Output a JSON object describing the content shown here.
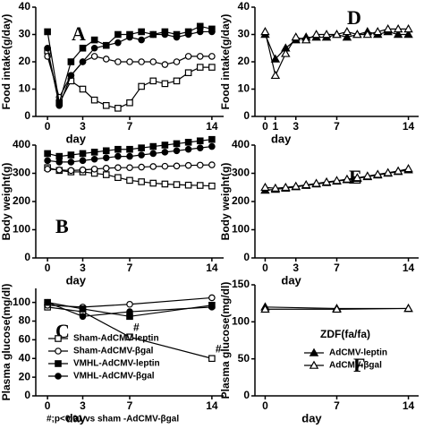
{
  "chart_data": [
    {
      "type": "line",
      "panel_label": "A",
      "y_label": "Food intake(g/day)",
      "x_label": "day",
      "x": [
        0,
        1,
        2,
        3,
        4,
        5,
        6,
        7,
        8,
        9,
        10,
        11,
        12,
        13,
        14
      ],
      "xlim": [
        -1,
        15
      ],
      "xticks": [
        0,
        3,
        7,
        14
      ],
      "ylim": [
        0,
        40
      ],
      "yticks": [
        0,
        10,
        20,
        30,
        40
      ],
      "series": [
        {
          "marker": "square-open",
          "values": [
            24,
            5,
            13,
            10,
            6,
            4,
            3,
            5,
            11,
            13,
            12,
            13,
            16,
            18,
            18
          ]
        },
        {
          "marker": "circle-open",
          "values": [
            22,
            7,
            15,
            20,
            22,
            21,
            20,
            20,
            20,
            20,
            19,
            20,
            22,
            22,
            22
          ]
        },
        {
          "marker": "square",
          "values": [
            31,
            5,
            20,
            25,
            28,
            26,
            30,
            30,
            31,
            30,
            31,
            30,
            31,
            33,
            32
          ]
        },
        {
          "marker": "circle",
          "values": [
            25,
            4,
            15,
            20,
            25,
            26,
            27,
            29,
            28,
            30,
            30,
            29,
            30,
            31,
            31
          ]
        }
      ]
    },
    {
      "type": "line",
      "panel_label": "B",
      "y_label": "Body weight(g)",
      "x_label": "day",
      "x": [
        0,
        1,
        2,
        3,
        4,
        5,
        6,
        7,
        8,
        9,
        10,
        11,
        12,
        13,
        14
      ],
      "xlim": [
        -1,
        15
      ],
      "xticks": [
        0,
        3,
        7,
        14
      ],
      "ylim": [
        0,
        400
      ],
      "yticks": [
        0,
        100,
        200,
        300,
        400
      ],
      "series": [
        {
          "marker": "square-open",
          "values": [
            320,
            310,
            305,
            305,
            300,
            295,
            285,
            275,
            270,
            265,
            262,
            260,
            258,
            257,
            255
          ]
        },
        {
          "marker": "circle-open",
          "values": [
            315,
            312,
            310,
            312,
            315,
            318,
            320,
            320,
            322,
            324,
            325,
            326,
            328,
            329,
            330
          ]
        },
        {
          "marker": "square",
          "values": [
            370,
            360,
            365,
            370,
            375,
            380,
            385,
            385,
            390,
            395,
            400,
            405,
            410,
            415,
            420
          ]
        },
        {
          "marker": "circle",
          "values": [
            345,
            340,
            340,
            345,
            350,
            355,
            360,
            360,
            365,
            370,
            375,
            380,
            385,
            390,
            395
          ]
        }
      ]
    },
    {
      "type": "line",
      "panel_label": "C",
      "y_label": "Plasma glucose(mg/dl)",
      "x_label": "day",
      "note": "#;p<0.01 vs sham -AdCMV-βgal",
      "x": [
        0,
        3,
        7,
        14
      ],
      "xlim": [
        -1,
        15
      ],
      "xticks": [
        0,
        3,
        7,
        14
      ],
      "ylim": [
        0,
        115
      ],
      "yticks": [
        0,
        20,
        40,
        60,
        80,
        100
      ],
      "legend": "lower left",
      "annotations": [
        {
          "text": "#",
          "x": 7
        },
        {
          "text": "#",
          "x": 14
        }
      ],
      "series": [
        {
          "name": "Sham-AdCMV-leptin",
          "marker": "square-open",
          "values": [
            95,
            90,
            63,
            40
          ]
        },
        {
          "name": "Sham-AdCMV-βgal",
          "marker": "circle-open",
          "values": [
            97,
            95,
            98,
            105
          ]
        },
        {
          "name": "VMHL-AdCMV-leptin",
          "marker": "square",
          "values": [
            100,
            93,
            85,
            97
          ]
        },
        {
          "name": "VMHL-AdCMV-βgal",
          "marker": "circle",
          "values": [
            100,
            85,
            90,
            95
          ]
        }
      ]
    },
    {
      "type": "line",
      "panel_label": "D",
      "y_label": "Food intake(g/day)",
      "x_label": "day",
      "x": [
        0,
        1,
        2,
        3,
        4,
        5,
        6,
        7,
        8,
        9,
        10,
        11,
        12,
        13,
        14
      ],
      "xlim": [
        -1,
        15
      ],
      "xticks": [
        0,
        1,
        3,
        7,
        14
      ],
      "ylim": [
        0,
        40
      ],
      "yticks": [
        0,
        10,
        20,
        30,
        40
      ],
      "series": [
        {
          "marker": "triangle",
          "values": [
            30,
            21,
            25,
            28,
            29,
            29,
            29,
            30,
            29,
            30,
            31,
            30,
            31,
            30,
            30
          ]
        },
        {
          "marker": "triangle-open",
          "values": [
            31,
            15,
            23,
            29,
            28,
            30,
            30,
            30,
            31,
            30,
            30,
            31,
            32,
            32,
            32
          ]
        }
      ]
    },
    {
      "type": "line",
      "panel_label": "E",
      "y_label": "Body weight(g)",
      "x_label": "day",
      "x": [
        0,
        1,
        2,
        3,
        4,
        5,
        6,
        7,
        8,
        9,
        10,
        11,
        12,
        13,
        14
      ],
      "xlim": [
        -1,
        15
      ],
      "xticks": [
        0,
        3,
        7,
        14
      ],
      "ylim": [
        0,
        400
      ],
      "yticks": [
        0,
        100,
        200,
        300,
        400
      ],
      "series": [
        {
          "marker": "triangle",
          "values": [
            240,
            243,
            247,
            252,
            257,
            262,
            267,
            272,
            277,
            282,
            288,
            294,
            300,
            306,
            312
          ]
        },
        {
          "marker": "triangle-open",
          "values": [
            250,
            247,
            250,
            254,
            259,
            264,
            269,
            274,
            279,
            284,
            290,
            296,
            302,
            308,
            316
          ]
        }
      ]
    },
    {
      "type": "line",
      "panel_label": "F",
      "y_label": "Plasma glucose(mg/dl)",
      "x_label": "day",
      "x": [
        0,
        7,
        14
      ],
      "xlim": [
        -1,
        15
      ],
      "xticks": [
        0,
        7,
        14
      ],
      "ylim": [
        0,
        150
      ],
      "yticks": [
        0,
        50,
        100,
        150
      ],
      "legend": "lower right",
      "legend_title": "ZDF(fa/fa)",
      "series": [
        {
          "name": "AdCMV-leptin",
          "marker": "triangle",
          "values": [
            120,
            118,
            118
          ]
        },
        {
          "name": "AdCMV-βgal",
          "marker": "triangle-open",
          "values": [
            117,
            117,
            118
          ]
        }
      ]
    }
  ]
}
